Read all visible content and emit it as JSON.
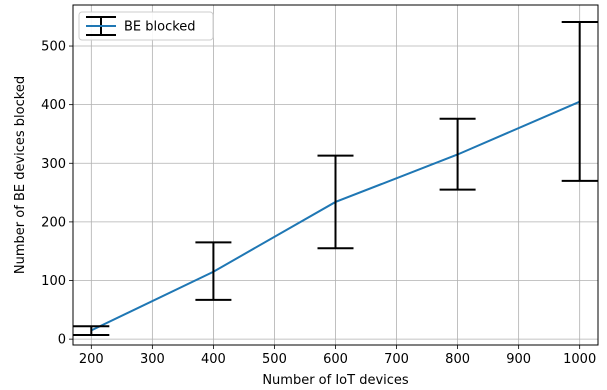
{
  "chart_data": {
    "type": "line",
    "xlabel": "Number of IoT devices",
    "ylabel": "Number of BE devices blocked",
    "xlim": [
      170,
      1030
    ],
    "ylim": [
      -10,
      570
    ],
    "xticks": [
      200,
      300,
      400,
      500,
      600,
      700,
      800,
      900,
      1000
    ],
    "yticks": [
      0,
      100,
      200,
      300,
      400,
      500
    ],
    "grid": true,
    "legend": {
      "position": "top-left"
    },
    "series": [
      {
        "name": "BE blocked",
        "color": "#1f77b4",
        "errorbar_color": "#000000",
        "x": [
          200,
          400,
          600,
          800,
          1000
        ],
        "y": [
          15,
          115,
          234,
          315,
          405
        ],
        "y_lower": [
          7,
          67,
          155,
          255,
          270
        ],
        "y_upper": [
          22,
          165,
          313,
          376,
          541
        ]
      }
    ]
  }
}
